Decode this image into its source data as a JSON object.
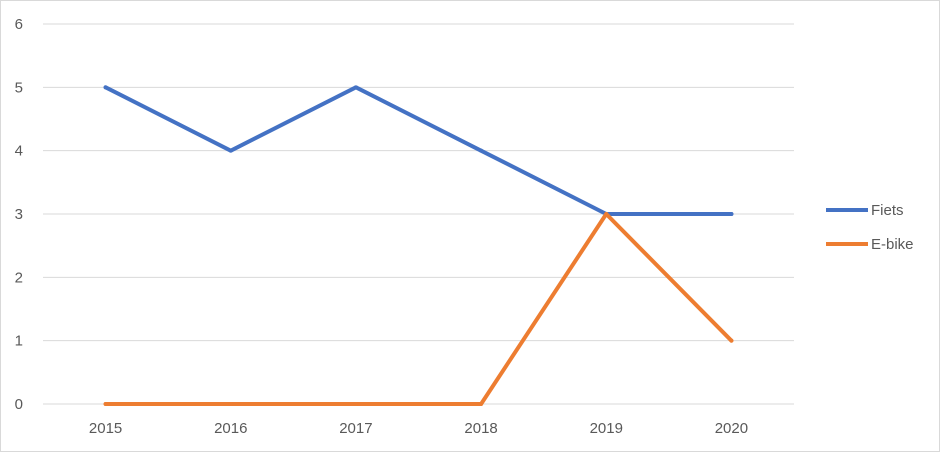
{
  "chart_data": {
    "type": "line",
    "categories": [
      "2015",
      "2016",
      "2017",
      "2018",
      "2019",
      "2020"
    ],
    "series": [
      {
        "name": "Fiets",
        "values": [
          5,
          4,
          5,
          4,
          3,
          3
        ],
        "color": "#4472c4"
      },
      {
        "name": "E-bike",
        "values": [
          0,
          0,
          0,
          0,
          3,
          1
        ],
        "color": "#ed7d31"
      }
    ],
    "yticks": [
      "0",
      "1",
      "2",
      "3",
      "4",
      "5",
      "6"
    ],
    "ylim": [
      0,
      6
    ],
    "grid": true,
    "legend_position": "right",
    "colors": {
      "gridline": "#d9d9d9",
      "label": "#595959"
    }
  }
}
